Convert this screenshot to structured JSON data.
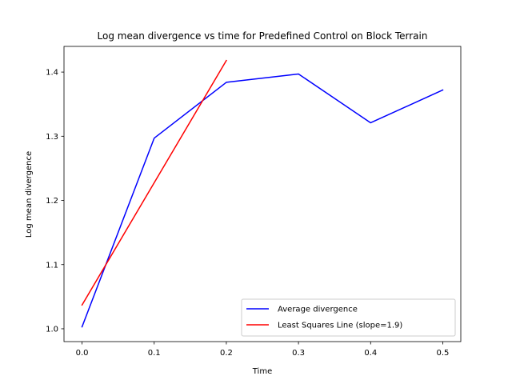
{
  "chart_data": {
    "type": "line",
    "title": "Log mean divergence vs time for Predefined Control on Block Terrain",
    "xlabel": "Time",
    "ylabel": "Log mean divergence",
    "xlim": [
      -0.025,
      0.525
    ],
    "ylim": [
      0.98,
      1.44
    ],
    "xticks": [
      0.0,
      0.1,
      0.2,
      0.3,
      0.4,
      0.5
    ],
    "xtick_labels": [
      "0.0",
      "0.1",
      "0.2",
      "0.3",
      "0.4",
      "0.5"
    ],
    "yticks": [
      1.0,
      1.1,
      1.2,
      1.3,
      1.4
    ],
    "ytick_labels": [
      "1.0",
      "1.1",
      "1.2",
      "1.3",
      "1.4"
    ],
    "grid": false,
    "legend_position": "lower-right",
    "series": [
      {
        "name": "Average divergence",
        "color": "#0000ff",
        "x": [
          0.0,
          0.1,
          0.2,
          0.3,
          0.4,
          0.5
        ],
        "y": [
          1.003,
          1.297,
          1.384,
          1.397,
          1.321,
          1.372
        ]
      },
      {
        "name": "Least Squares Line (slope=1.9)",
        "color": "#ff0000",
        "x": [
          0.0,
          0.2
        ],
        "y": [
          1.037,
          1.418
        ]
      }
    ]
  }
}
